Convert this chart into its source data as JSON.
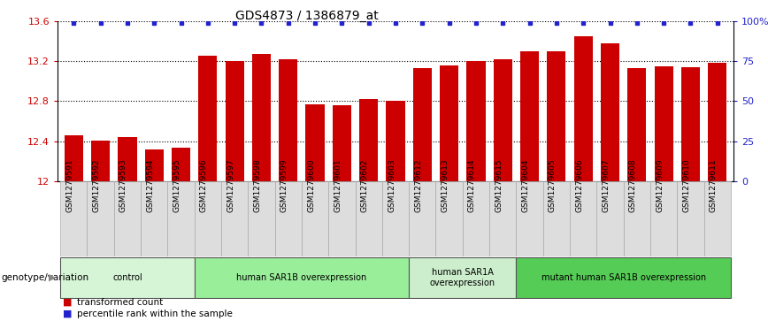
{
  "title": "GDS4873 / 1386879_at",
  "samples": [
    "GSM1279591",
    "GSM1279592",
    "GSM1279593",
    "GSM1279594",
    "GSM1279595",
    "GSM1279596",
    "GSM1279597",
    "GSM1279598",
    "GSM1279599",
    "GSM1279600",
    "GSM1279601",
    "GSM1279602",
    "GSM1279603",
    "GSM1279612",
    "GSM1279613",
    "GSM1279614",
    "GSM1279615",
    "GSM1279604",
    "GSM1279605",
    "GSM1279606",
    "GSM1279607",
    "GSM1279608",
    "GSM1279609",
    "GSM1279610",
    "GSM1279611"
  ],
  "bar_values": [
    12.46,
    12.41,
    12.44,
    12.32,
    12.34,
    13.25,
    13.2,
    13.27,
    13.22,
    12.77,
    12.76,
    12.82,
    12.8,
    13.13,
    13.16,
    13.2,
    13.22,
    13.3,
    13.3,
    13.45,
    13.38,
    13.13,
    13.15,
    13.14,
    13.18
  ],
  "bar_color": "#cc0000",
  "dot_color": "#2222cc",
  "ylim_left": [
    12.0,
    13.6
  ],
  "ylim_right": [
    0,
    100
  ],
  "yticks_left": [
    12.0,
    12.4,
    12.8,
    13.2,
    13.6
  ],
  "yticks_right": [
    0,
    25,
    50,
    75,
    100
  ],
  "ytick_labels_left": [
    "12",
    "12.4",
    "12.8",
    "13.2",
    "13.6"
  ],
  "ytick_labels_right": [
    "0",
    "25",
    "50",
    "75",
    "100%"
  ],
  "groups": [
    {
      "label": "control",
      "start": 0,
      "end": 5,
      "color": "#d6f5d6"
    },
    {
      "label": "human SAR1B overexpression",
      "start": 5,
      "end": 13,
      "color": "#99ee99"
    },
    {
      "label": "human SAR1A\noverexpression",
      "start": 13,
      "end": 17,
      "color": "#cceecc"
    },
    {
      "label": "mutant human SAR1B overexpression",
      "start": 17,
      "end": 25,
      "color": "#55cc55"
    }
  ],
  "left_axis_color": "#cc0000",
  "right_axis_color": "#2222cc",
  "legend_items": [
    {
      "label": "transformed count",
      "color": "#cc0000"
    },
    {
      "label": "percentile rank within the sample",
      "color": "#2222cc"
    }
  ],
  "genotype_label": "genotype/variation"
}
